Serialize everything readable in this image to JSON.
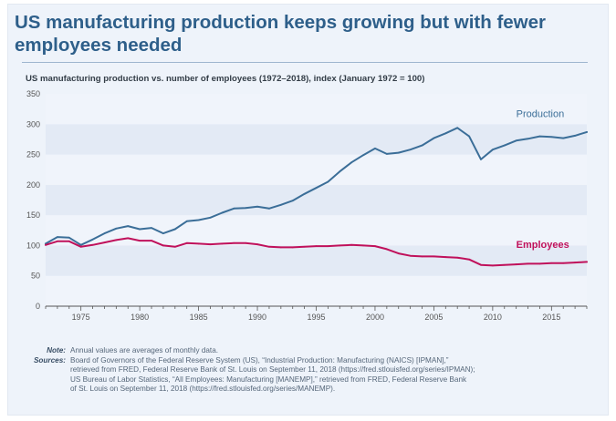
{
  "title_lines": [
    "US manufacturing production keeps growing but with fewer",
    "employees needed"
  ],
  "subtitle": "US manufacturing production vs. number of employees (1972–2018), index (January 1972 = 100)",
  "colors": {
    "production": "#3b6e98",
    "employees": "#c0115b",
    "band_light": "#f0f4fb",
    "band_dark": "#e3eaf5",
    "axis": "#555555",
    "tick_text": "#555555"
  },
  "chart_data": {
    "type": "line",
    "title": "US manufacturing production vs. number of employees (1972–2018), index (January 1972 = 100)",
    "xlabel": "",
    "ylabel": "",
    "xlim": [
      1972,
      2018
    ],
    "ylim": [
      0,
      350
    ],
    "yticks": [
      0,
      50,
      100,
      150,
      200,
      250,
      300,
      350
    ],
    "xticks": [
      1975,
      1980,
      1985,
      1990,
      1995,
      2000,
      2005,
      2010,
      2015
    ],
    "grid": "alternating horizontal bands",
    "series": [
      {
        "name": "Production",
        "x": [
          1972,
          1973,
          1974,
          1975,
          1976,
          1977,
          1978,
          1979,
          1980,
          1981,
          1982,
          1983,
          1984,
          1985,
          1986,
          1987,
          1988,
          1989,
          1990,
          1991,
          1992,
          1993,
          1994,
          1995,
          1996,
          1997,
          1998,
          1999,
          2000,
          2001,
          2002,
          2003,
          2004,
          2005,
          2006,
          2007,
          2008,
          2009,
          2010,
          2011,
          2012,
          2013,
          2014,
          2015,
          2016,
          2017,
          2018
        ],
        "values": [
          103,
          114,
          113,
          101,
          110,
          120,
          128,
          132,
          127,
          129,
          120,
          127,
          140,
          142,
          146,
          154,
          161,
          162,
          164,
          161,
          167,
          174,
          185,
          195,
          205,
          222,
          237,
          249,
          260,
          251,
          253,
          258,
          265,
          277,
          285,
          294,
          280,
          242,
          258,
          265,
          273,
          276,
          280,
          279,
          277,
          281,
          287
        ]
      },
      {
        "name": "Employees",
        "x": [
          1972,
          1973,
          1974,
          1975,
          1976,
          1977,
          1978,
          1979,
          1980,
          1981,
          1982,
          1983,
          1984,
          1985,
          1986,
          1987,
          1988,
          1989,
          1990,
          1991,
          1992,
          1993,
          1994,
          1995,
          1996,
          1997,
          1998,
          1999,
          2000,
          2001,
          2002,
          2003,
          2004,
          2005,
          2006,
          2007,
          2008,
          2009,
          2010,
          2011,
          2012,
          2013,
          2014,
          2015,
          2016,
          2017,
          2018
        ],
        "values": [
          101,
          107,
          107,
          98,
          101,
          105,
          109,
          112,
          108,
          108,
          100,
          98,
          104,
          103,
          102,
          103,
          104,
          104,
          102,
          98,
          97,
          97,
          98,
          99,
          99,
          100,
          101,
          100,
          99,
          94,
          87,
          83,
          82,
          82,
          81,
          80,
          77,
          68,
          67,
          68,
          69,
          70,
          70,
          71,
          71,
          72,
          73
        ]
      }
    ],
    "annotations": [
      {
        "series": "Production",
        "text": "Production",
        "x": 2012,
        "y": 312
      },
      {
        "series": "Employees",
        "text": "Employees",
        "x": 2012,
        "y": 96
      }
    ]
  },
  "notes": [
    {
      "label": "Note:",
      "lines": [
        "Annual values are averages of monthly data."
      ]
    },
    {
      "label": "Sources:",
      "lines": [
        "Board of Governors of the Federal Reserve System (US), “Industrial Production: Manufacturing (NAICS) [IPMAN],”",
        "retrieved from FRED, Federal Reserve Bank of St. Louis on September 11, 2018 (https://fred.stlouisfed.org/series/IPMAN);",
        "US Bureau of Labor Statistics, “All Employees: Manufacturing [MANEMP],” retrieved from FRED, Federal Reserve Bank",
        "of St. Louis on September 11, 2018 (https://fred.stlouisfed.org/series/MANEMP)."
      ]
    }
  ]
}
